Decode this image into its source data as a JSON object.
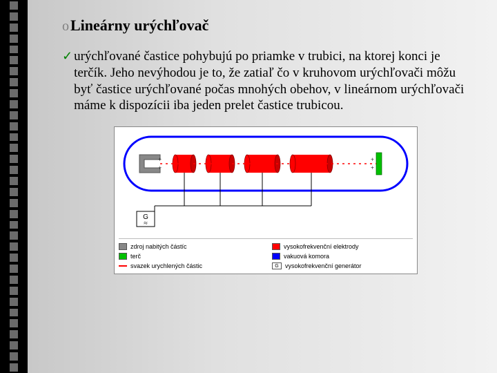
{
  "title_bullet": "o",
  "title": "Lineárny urýchľovač",
  "body_check": "✓",
  "body": "urýchľované častice pohybujú po priamke v trubici, na ktorej konci je terčík. Jeho nevýhodou je to, že zatiaľ čo v kruhovom urýchľovači môžu byť častice urýchľované počas mnohých obehov, v lineárnom urýchľovači máme k dispozícii iba jeden prelet častice trubicou.",
  "diagram": {
    "chamber_color": "#0000ff",
    "chamber_fill": "#ffffff",
    "source_color": "#888888",
    "electrode_color": "#ff0000",
    "beam_color": "#ff0000",
    "target_color": "#00c000",
    "generator_label": "G",
    "electrode_count": 4,
    "electrode_widths": [
      34,
      42,
      52,
      62
    ],
    "chamber_width": 410,
    "chamber_height": 78
  },
  "legend": {
    "items": [
      {
        "color": "#888888",
        "label": "zdroj nabitých částíc"
      },
      {
        "color": "#ff0000",
        "label": "vysokofrekvenční elektrody"
      },
      {
        "color": "#00c000",
        "label": "terč"
      },
      {
        "color": "#0000ff",
        "label": "vakuová komora"
      },
      {
        "color": "#ff0000",
        "label": "svazek urychlených částic",
        "thin": true
      },
      {
        "box": "G",
        "label": "vysokofrekvenční generátor"
      }
    ]
  },
  "sidebar": {
    "square_count": 34,
    "square_color": "#6b6b6b",
    "bg": "#000000"
  }
}
